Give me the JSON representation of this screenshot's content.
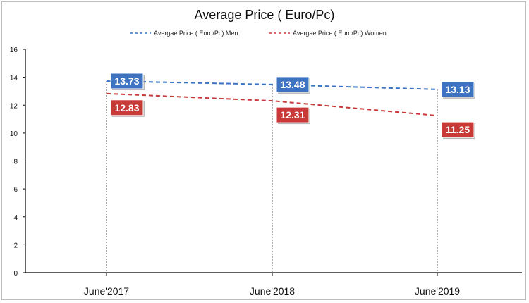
{
  "chart_data": {
    "type": "line",
    "title": "Average Price ( Euro/Pc)",
    "categories": [
      "June'2017",
      "June'2018",
      "June'2019"
    ],
    "series": [
      {
        "name": "Avergae Price ( Euro/Pc) Men",
        "values": [
          13.73,
          13.48,
          13.13
        ],
        "color": "#3b73c4",
        "label_color": "#3d73c0"
      },
      {
        "name": "Avergae Price ( Euro/Pc) Women",
        "values": [
          12.83,
          12.31,
          11.25
        ],
        "color": "#c9393b",
        "label_color": "#c83a38"
      }
    ],
    "data_labels": {
      "men": [
        "13.73",
        "13.48",
        "13.13"
      ],
      "women": [
        "12.83",
        "12.31",
        "11.25"
      ]
    },
    "ylim": [
      0,
      16
    ],
    "yticks": [
      "0",
      "2",
      "4",
      "6",
      "8",
      "10",
      "12",
      "14",
      "16"
    ],
    "xlabel": "",
    "ylabel": "",
    "line_style": "dashed",
    "category_guides": "dashed-vertical",
    "grid": false,
    "legend_position": "top"
  }
}
